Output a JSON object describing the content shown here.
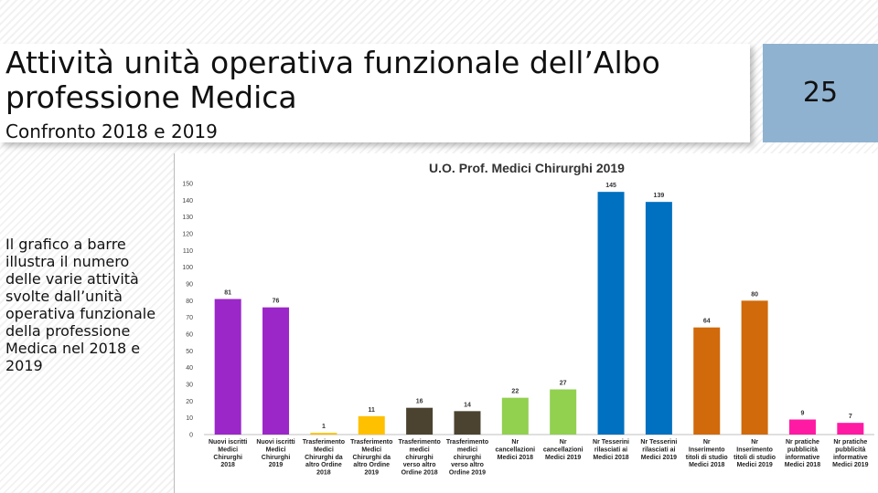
{
  "slide": {
    "title": "Attività unità operativa funzionale dell’Albo professione Medica",
    "subtitle": "Confronto 2018 e 2019",
    "page_number": "25",
    "description": "Il grafico a barre illustra il numero delle varie attività svolte dall’unità operativa funzionale della professione Medica nel 2018 e 2019"
  },
  "chart_data": {
    "type": "bar",
    "title": "U.O. Prof. Medici Chirurghi 2019",
    "xlabel": "",
    "ylabel": "",
    "ylim": [
      0,
      150
    ],
    "yticks": [
      0,
      10,
      20,
      30,
      40,
      50,
      60,
      70,
      80,
      90,
      100,
      110,
      120,
      130,
      140,
      150
    ],
    "grid": false,
    "categories": [
      [
        "Nuovi iscritti",
        "Medici",
        "Chirurghi",
        "2018"
      ],
      [
        "Nuovi iscritti",
        "Medici",
        "Chirurghi",
        "2019"
      ],
      [
        "Trasferimento",
        "Medici",
        "Chirurghi da",
        "altro Ordine",
        "2018"
      ],
      [
        "Trasferimento",
        "Medici",
        "Chirurghi da",
        "altro Ordine",
        "2019"
      ],
      [
        "Trasferimento",
        "medici",
        "chirurghi",
        "verso altro",
        "Ordine 2018"
      ],
      [
        "Trasferimento",
        "medici",
        "chirurghi",
        "verso altro",
        "Ordine 2019"
      ],
      [
        "Nr",
        "cancellazioni",
        "Medici 2018"
      ],
      [
        "Nr",
        "cancellazioni",
        "Medici 2019"
      ],
      [
        "Nr Tesserini",
        "rilasciati ai",
        "Medici 2018"
      ],
      [
        "Nr Tesserini",
        "rilasciati ai",
        "Medici 2019"
      ],
      [
        "Nr",
        "Inserimento",
        "titoli di studio",
        "Medici 2018"
      ],
      [
        "Nr",
        "Inserimento",
        "titoli di studio",
        "Medici 2019"
      ],
      [
        "Nr pratiche",
        "pubblicità",
        "informative",
        "Medici 2018"
      ],
      [
        "Nr pratiche",
        "pubblicità",
        "informative",
        "Medici 2019"
      ]
    ],
    "values": [
      81,
      76,
      1,
      11,
      16,
      14,
      22,
      27,
      145,
      139,
      64,
      80,
      9,
      7
    ],
    "colors": [
      "#9b27c9",
      "#9b27c9",
      "#ffc000",
      "#ffc000",
      "#4b4330",
      "#4b4330",
      "#92d050",
      "#92d050",
      "#0070c0",
      "#0070c0",
      "#d06a0a",
      "#d06a0a",
      "#ff1aa3",
      "#ff1aa3"
    ]
  }
}
